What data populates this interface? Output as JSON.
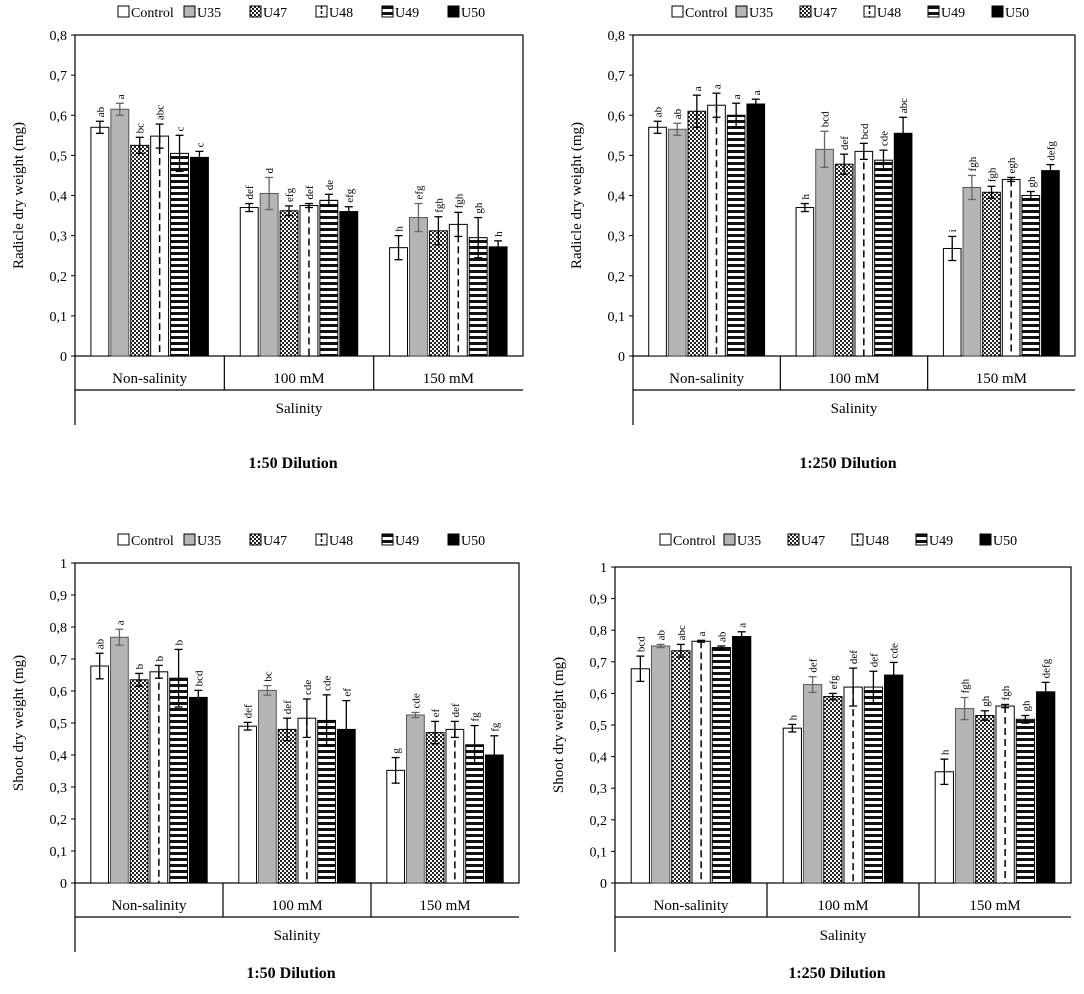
{
  "treatments": [
    "Control",
    "U35",
    "U47",
    "U48",
    "U49",
    "U50"
  ],
  "group_axis_title": "Salinity",
  "chart_data": [
    {
      "type": "bar",
      "title": "1:50 Dilution",
      "ylabel": "Radicle dry weight (mg)",
      "xlabel": "Salinity",
      "categories": [
        "Non-salinity",
        "100 mM",
        "150  mM"
      ],
      "ylim": [
        0,
        0.8
      ],
      "yticks": [
        "0",
        "0,1",
        "0,2",
        "0,3",
        "0,4",
        "0,5",
        "0,6",
        "0,7",
        "0,8"
      ],
      "series": [
        {
          "name": "Control",
          "values": [
            0.57,
            0.37,
            0.27
          ],
          "errors": [
            0.015,
            0.01,
            0.03
          ],
          "letters": [
            "ab",
            "def",
            "h"
          ]
        },
        {
          "name": "U35",
          "values": [
            0.615,
            0.405,
            0.345
          ],
          "errors": [
            0.015,
            0.04,
            0.035
          ],
          "letters": [
            "a",
            "d",
            "efg"
          ]
        },
        {
          "name": "U47",
          "values": [
            0.525,
            0.362,
            0.312
          ],
          "errors": [
            0.02,
            0.012,
            0.035
          ],
          "letters": [
            "bc",
            "efg",
            "fgh"
          ]
        },
        {
          "name": "U48",
          "values": [
            0.548,
            0.375,
            0.328
          ],
          "errors": [
            0.03,
            0.005,
            0.03
          ],
          "letters": [
            "abc",
            "def",
            "fgh"
          ]
        },
        {
          "name": "U49",
          "values": [
            0.505,
            0.388,
            0.295
          ],
          "errors": [
            0.045,
            0.015,
            0.05
          ],
          "letters": [
            "c",
            "de",
            "gh"
          ]
        },
        {
          "name": "U50",
          "values": [
            0.495,
            0.36,
            0.272
          ],
          "errors": [
            0.015,
            0.012,
            0.015
          ],
          "letters": [
            "c",
            "efg",
            "h"
          ]
        }
      ]
    },
    {
      "type": "bar",
      "title": "1:250 Dilution",
      "ylabel": "Radicle dry weight (mg)",
      "xlabel": "Salinity",
      "categories": [
        "Non-salinity",
        "100 mM",
        "150  mM"
      ],
      "ylim": [
        0,
        0.8
      ],
      "yticks": [
        "0",
        "0,1",
        "0,2",
        "0,3",
        "0,4",
        "0,5",
        "0,6",
        "0,7",
        "0,8"
      ],
      "series": [
        {
          "name": "Control",
          "values": [
            0.57,
            0.37,
            0.268
          ],
          "errors": [
            0.015,
            0.01,
            0.03
          ],
          "letters": [
            "ab",
            "h",
            "i"
          ]
        },
        {
          "name": "U35",
          "values": [
            0.565,
            0.515,
            0.42
          ],
          "errors": [
            0.015,
            0.045,
            0.03
          ],
          "letters": [
            "ab",
            "bcd",
            "fgh"
          ]
        },
        {
          "name": "U47",
          "values": [
            0.61,
            0.478,
            0.408
          ],
          "errors": [
            0.04,
            0.025,
            0.015
          ],
          "letters": [
            "a",
            "def",
            "fgh"
          ]
        },
        {
          "name": "U48",
          "values": [
            0.625,
            0.51,
            0.44
          ],
          "errors": [
            0.03,
            0.02,
            0.005
          ],
          "letters": [
            "a",
            "bcd",
            "egh"
          ]
        },
        {
          "name": "U49",
          "values": [
            0.6,
            0.488,
            0.4
          ],
          "errors": [
            0.03,
            0.025,
            0.01
          ],
          "letters": [
            "a",
            "cde",
            "gh"
          ]
        },
        {
          "name": "U50",
          "values": [
            0.628,
            0.555,
            0.462
          ],
          "errors": [
            0.012,
            0.04,
            0.015
          ],
          "letters": [
            "a",
            "abc",
            "defg"
          ]
        }
      ]
    },
    {
      "type": "bar",
      "title": "1:50 Dilution",
      "ylabel": "Shoot dry weight (mg)",
      "xlabel": "Salinity",
      "categories": [
        "Non-salinity",
        "100 mM",
        "150  mM"
      ],
      "ylim": [
        0,
        1
      ],
      "yticks": [
        "0",
        "0,1",
        "0,2",
        "0,3",
        "0,4",
        "0,5",
        "0,6",
        "0,7",
        "0,8",
        "0,9",
        "1"
      ],
      "series": [
        {
          "name": "Control",
          "values": [
            0.678,
            0.49,
            0.352
          ],
          "errors": [
            0.04,
            0.012,
            0.04
          ],
          "letters": [
            "ab",
            "def",
            "g"
          ]
        },
        {
          "name": "U35",
          "values": [
            0.768,
            0.602,
            0.525
          ],
          "errors": [
            0.025,
            0.015,
            0.008
          ],
          "letters": [
            "a",
            "bc",
            "cde"
          ]
        },
        {
          "name": "U47",
          "values": [
            0.635,
            0.48,
            0.47
          ],
          "errors": [
            0.02,
            0.035,
            0.035
          ],
          "letters": [
            "b",
            "def",
            "ef"
          ]
        },
        {
          "name": "U48",
          "values": [
            0.66,
            0.515,
            0.48
          ],
          "errors": [
            0.02,
            0.06,
            0.025
          ],
          "letters": [
            "b",
            "cde",
            "def"
          ]
        },
        {
          "name": "U49",
          "values": [
            0.64,
            0.508,
            0.432
          ],
          "errors": [
            0.09,
            0.08,
            0.06
          ],
          "letters": [
            "b",
            "cde",
            "fg"
          ]
        },
        {
          "name": "U50",
          "values": [
            0.58,
            0.48,
            0.4
          ],
          "errors": [
            0.022,
            0.09,
            0.06
          ],
          "letters": [
            "bcd",
            "ef",
            "fg"
          ]
        }
      ]
    },
    {
      "type": "bar",
      "title": "1:250 Dilution",
      "ylabel": "Shoot dry weight (mg)",
      "xlabel": "Salinity",
      "categories": [
        "Non-salinity",
        "100 mM",
        "150  mM"
      ],
      "ylim": [
        0,
        1
      ],
      "yticks": [
        "0",
        "0,1",
        "0,2",
        "0,3",
        "0,4",
        "0,5",
        "0,6",
        "0,7",
        "0,8",
        "0,9",
        "1"
      ],
      "series": [
        {
          "name": "Control",
          "values": [
            0.678,
            0.49,
            0.352
          ],
          "errors": [
            0.04,
            0.012,
            0.04
          ],
          "letters": [
            "bcd",
            "h",
            "h"
          ]
        },
        {
          "name": "U35",
          "values": [
            0.75,
            0.628,
            0.552
          ],
          "errors": [
            0.005,
            0.025,
            0.035
          ],
          "letters": [
            "ab",
            "def",
            "fgh"
          ]
        },
        {
          "name": "U47",
          "values": [
            0.735,
            0.59,
            0.53
          ],
          "errors": [
            0.02,
            0.01,
            0.015
          ],
          "letters": [
            "abc",
            "efg",
            "gh"
          ]
        },
        {
          "name": "U48",
          "values": [
            0.765,
            0.62,
            0.56
          ],
          "errors": [
            0.003,
            0.06,
            0.005
          ],
          "letters": [
            "a",
            "def",
            "fgh"
          ]
        },
        {
          "name": "U49",
          "values": [
            0.745,
            0.62,
            0.518
          ],
          "errors": [
            0.005,
            0.05,
            0.012
          ],
          "letters": [
            "ab",
            "def",
            "gh"
          ]
        },
        {
          "name": "U50",
          "values": [
            0.78,
            0.658,
            0.605
          ],
          "errors": [
            0.015,
            0.04,
            0.03
          ],
          "letters": [
            "a",
            "cde",
            "defg"
          ]
        }
      ]
    }
  ]
}
